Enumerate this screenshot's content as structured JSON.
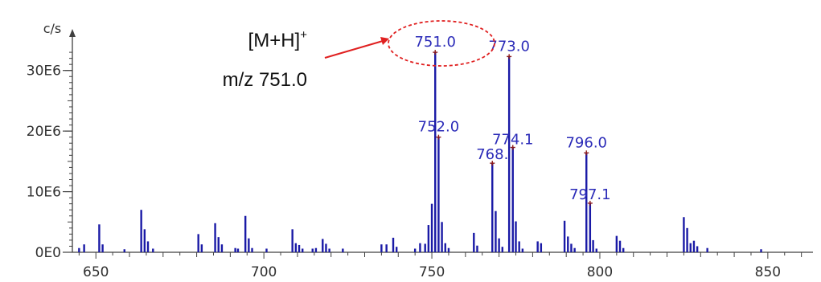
{
  "chart_data": {
    "type": "bar",
    "title": "",
    "xlabel": "",
    "ylabel": "c/s",
    "xlim": [
      643,
      862
    ],
    "ylim": [
      0,
      35000000
    ],
    "x_ticks": [
      650,
      700,
      750,
      800,
      850
    ],
    "y_ticks": [
      {
        "value": 0,
        "label": "0E0"
      },
      {
        "value": 10000000,
        "label": "10E6"
      },
      {
        "value": 20000000,
        "label": "20E6"
      },
      {
        "value": 30000000,
        "label": "30E6"
      }
    ],
    "peaks": [
      {
        "x": 645.0,
        "y": 700000
      },
      {
        "x": 646.5,
        "y": 1300000
      },
      {
        "x": 651.0,
        "y": 4600000
      },
      {
        "x": 652.0,
        "y": 1300000
      },
      {
        "x": 658.5,
        "y": 500000
      },
      {
        "x": 663.5,
        "y": 7000000
      },
      {
        "x": 664.5,
        "y": 3800000
      },
      {
        "x": 665.5,
        "y": 1800000
      },
      {
        "x": 667.0,
        "y": 600000
      },
      {
        "x": 680.5,
        "y": 3000000
      },
      {
        "x": 681.5,
        "y": 1300000
      },
      {
        "x": 685.5,
        "y": 4800000
      },
      {
        "x": 686.5,
        "y": 2500000
      },
      {
        "x": 687.5,
        "y": 1300000
      },
      {
        "x": 691.5,
        "y": 700000
      },
      {
        "x": 692.3,
        "y": 600000
      },
      {
        "x": 694.5,
        "y": 6000000
      },
      {
        "x": 695.5,
        "y": 2300000
      },
      {
        "x": 696.5,
        "y": 700000
      },
      {
        "x": 700.8,
        "y": 600000
      },
      {
        "x": 708.5,
        "y": 3800000
      },
      {
        "x": 709.5,
        "y": 1500000
      },
      {
        "x": 710.5,
        "y": 1200000
      },
      {
        "x": 711.5,
        "y": 600000
      },
      {
        "x": 714.5,
        "y": 600000
      },
      {
        "x": 715.5,
        "y": 700000
      },
      {
        "x": 717.5,
        "y": 2200000
      },
      {
        "x": 718.5,
        "y": 1400000
      },
      {
        "x": 719.5,
        "y": 600000
      },
      {
        "x": 723.5,
        "y": 600000
      },
      {
        "x": 735.0,
        "y": 1300000
      },
      {
        "x": 736.5,
        "y": 1300000
      },
      {
        "x": 738.5,
        "y": 2400000
      },
      {
        "x": 739.5,
        "y": 900000
      },
      {
        "x": 745.0,
        "y": 600000
      },
      {
        "x": 746.5,
        "y": 1500000
      },
      {
        "x": 748.0,
        "y": 1400000
      },
      {
        "x": 749.0,
        "y": 4500000
      },
      {
        "x": 750.0,
        "y": 8000000
      },
      {
        "x": 751.0,
        "y": 33000000
      },
      {
        "x": 752.0,
        "y": 19000000
      },
      {
        "x": 753.0,
        "y": 5000000
      },
      {
        "x": 754.0,
        "y": 1500000
      },
      {
        "x": 755.0,
        "y": 700000
      },
      {
        "x": 762.5,
        "y": 3200000
      },
      {
        "x": 763.5,
        "y": 1100000
      },
      {
        "x": 768.0,
        "y": 14700000
      },
      {
        "x": 769.0,
        "y": 6800000
      },
      {
        "x": 770.0,
        "y": 2300000
      },
      {
        "x": 771.0,
        "y": 900000
      },
      {
        "x": 773.0,
        "y": 32300000
      },
      {
        "x": 774.1,
        "y": 17300000
      },
      {
        "x": 775.0,
        "y": 5100000
      },
      {
        "x": 776.0,
        "y": 1800000
      },
      {
        "x": 777.0,
        "y": 600000
      },
      {
        "x": 781.5,
        "y": 1800000
      },
      {
        "x": 782.5,
        "y": 1500000
      },
      {
        "x": 789.5,
        "y": 5200000
      },
      {
        "x": 790.5,
        "y": 2600000
      },
      {
        "x": 791.5,
        "y": 1400000
      },
      {
        "x": 792.5,
        "y": 700000
      },
      {
        "x": 796.0,
        "y": 16400000
      },
      {
        "x": 797.1,
        "y": 8100000
      },
      {
        "x": 798.0,
        "y": 2000000
      },
      {
        "x": 799.0,
        "y": 600000
      },
      {
        "x": 805.0,
        "y": 2700000
      },
      {
        "x": 806.0,
        "y": 1900000
      },
      {
        "x": 807.0,
        "y": 700000
      },
      {
        "x": 825.0,
        "y": 5800000
      },
      {
        "x": 826.0,
        "y": 4000000
      },
      {
        "x": 827.0,
        "y": 1500000
      },
      {
        "x": 828.0,
        "y": 1900000
      },
      {
        "x": 829.0,
        "y": 1000000
      },
      {
        "x": 832.0,
        "y": 700000
      },
      {
        "x": 848.0,
        "y": 500000
      }
    ],
    "peak_labels": [
      {
        "x": 751.0,
        "y": 33000000,
        "text": "751.0",
        "anchor": "middle",
        "dy": -7
      },
      {
        "x": 773.0,
        "y": 32300000,
        "text": "773.0",
        "anchor": "middle",
        "dy": -7
      },
      {
        "x": 752.0,
        "y": 19000000,
        "text": "752.0",
        "anchor": "middle",
        "dy": -7
      },
      {
        "x": 774.1,
        "y": 17300000,
        "text": "774.1",
        "anchor": "middle",
        "dy": -4
      },
      {
        "x": 768.0,
        "y": 14700000,
        "text": "768.",
        "anchor": "middle",
        "dy": -5
      },
      {
        "x": 796.0,
        "y": 16400000,
        "text": "796.0",
        "anchor": "middle",
        "dy": -7
      },
      {
        "x": 797.1,
        "y": 8100000,
        "text": "797.1",
        "anchor": "middle",
        "dy": -5
      }
    ],
    "colors": {
      "peaks": "#1a1aa6",
      "labels": "#2b2bb8",
      "markers": "#8b1a1a",
      "axis": "#404040",
      "annotation": "#e02020"
    }
  },
  "annotation": {
    "line1": "[M+H]",
    "line1_sup": "+",
    "line2": "m/z 751.0"
  }
}
